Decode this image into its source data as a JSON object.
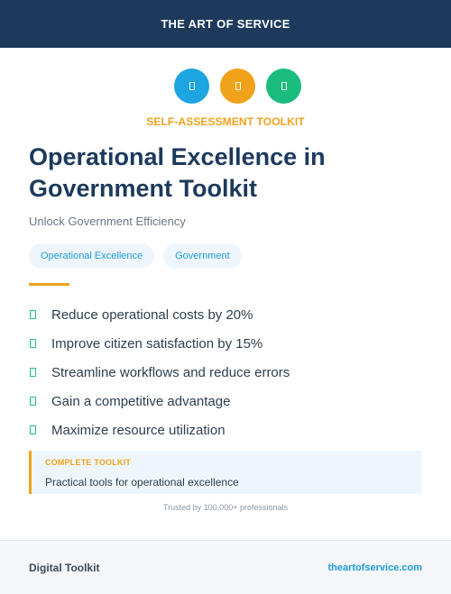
{
  "header": {
    "brand": "THE ART OF SERVICE"
  },
  "icons": [
    {
      "name": "document-icon",
      "color": "#1ca5e0"
    },
    {
      "name": "document-icon",
      "color": "#f0a21b"
    },
    {
      "name": "document-icon",
      "color": "#1bbd7f"
    }
  ],
  "eyebrow": "SELF-ASSESSMENT TOOLKIT",
  "title": "Operational Excellence in Government Toolkit",
  "subtitle": "Unlock Government Efficiency",
  "tags": [
    "Operational Excellence",
    "Government"
  ],
  "features": [
    "Reduce operational costs by 20%",
    "Improve citizen satisfaction by 15%",
    "Streamline workflows and reduce errors",
    "Gain a competitive advantage",
    "Maximize resource utilization"
  ],
  "callout": {
    "label": "COMPLETE TOOLKIT",
    "text": "Practical tools for operational excellence"
  },
  "trusted": "Trusted by 100,000+ professionals",
  "footer": {
    "left": "Digital Toolkit",
    "right": "theartofservice.com"
  },
  "colors": {
    "navy": "#1d3a5c",
    "accent": "#f0a21b",
    "blue": "#1f9bd8",
    "green": "#1bbd7f"
  }
}
